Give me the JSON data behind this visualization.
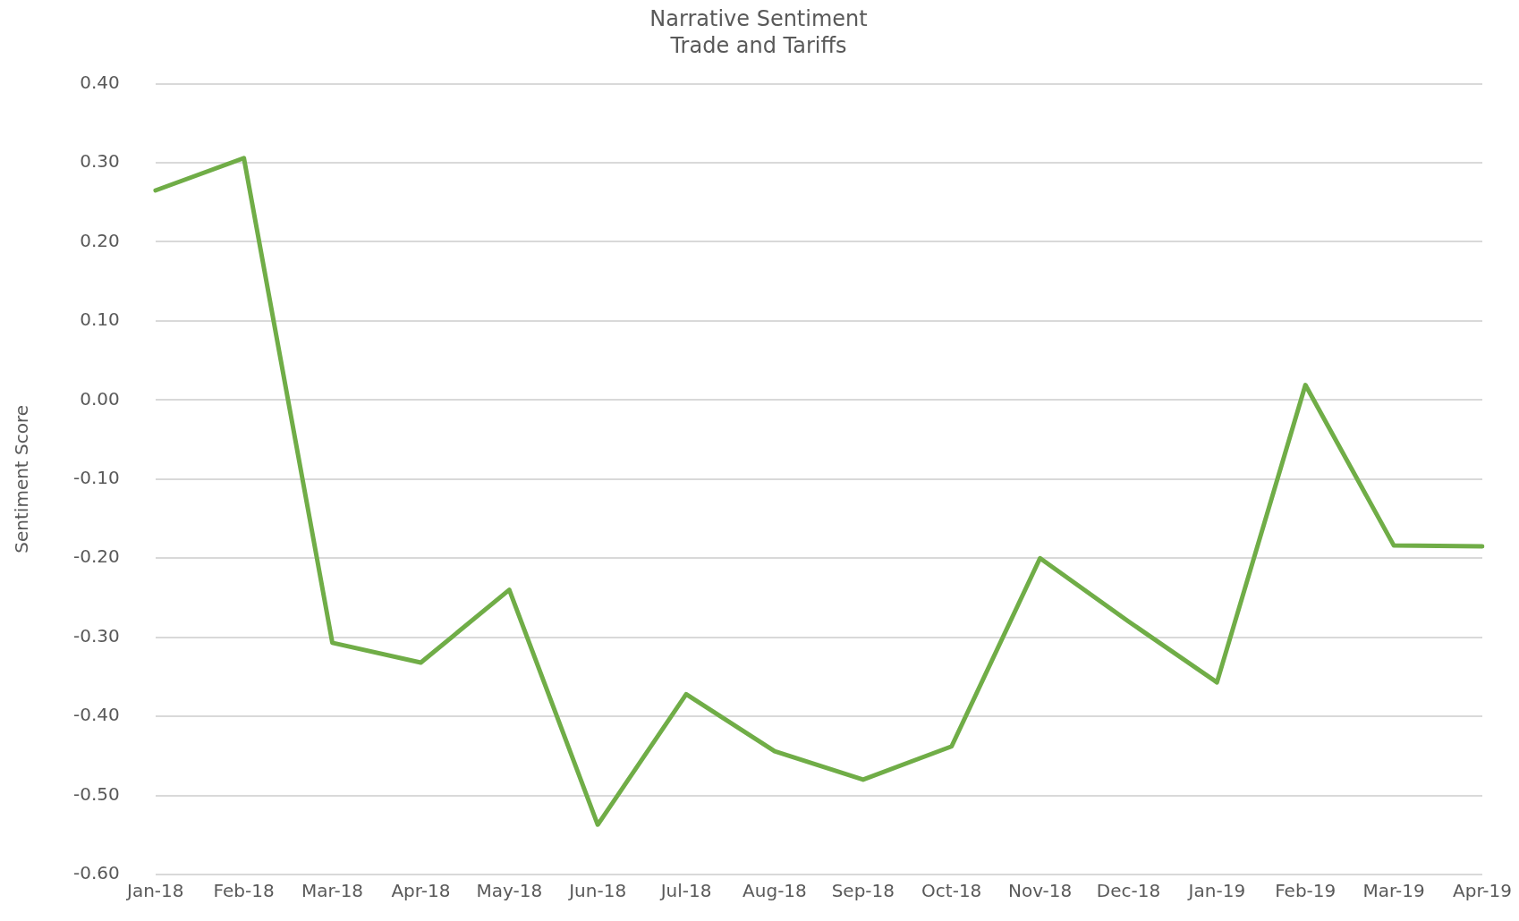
{
  "chart_data": {
    "type": "line",
    "title": "Narrative Sentiment",
    "subtitle": "Trade and Tariffs",
    "ylabel": "Sentiment Score",
    "categories": [
      "Jan-18",
      "Feb-18",
      "Mar-18",
      "Apr-18",
      "May-18",
      "Jun-18",
      "Jul-18",
      "Aug-18",
      "Sep-18",
      "Oct-18",
      "Nov-18",
      "Dec-18",
      "Jan-19",
      "Feb-19",
      "Mar-19",
      "Apr-19"
    ],
    "series": [
      {
        "color": "#70ad47",
        "values": [
          0.265,
          0.306,
          -0.307,
          -0.332,
          -0.24,
          -0.537,
          -0.372,
          -0.444,
          -0.48,
          -0.438,
          -0.2,
          -0.28,
          -0.357,
          0.019,
          -0.184,
          -0.185
        ]
      }
    ],
    "ylim": [
      -0.6,
      0.4
    ],
    "yticks": [
      {
        "value": -0.6,
        "label": "-0.60"
      },
      {
        "value": -0.5,
        "label": "-0.50"
      },
      {
        "value": -0.4,
        "label": "-0.40"
      },
      {
        "value": -0.3,
        "label": "-0.30"
      },
      {
        "value": -0.2,
        "label": "-0.20"
      },
      {
        "value": -0.1,
        "label": "-0.10"
      },
      {
        "value": 0,
        "label": "0.00"
      },
      {
        "value": 0.1,
        "label": "0.10"
      },
      {
        "value": 0.2,
        "label": "0.20"
      },
      {
        "value": 0.3,
        "label": "0.30"
      },
      {
        "value": 0.4,
        "label": "0.40"
      }
    ],
    "grid": "y",
    "legend": false,
    "marker": "none",
    "line_style": "solid"
  }
}
